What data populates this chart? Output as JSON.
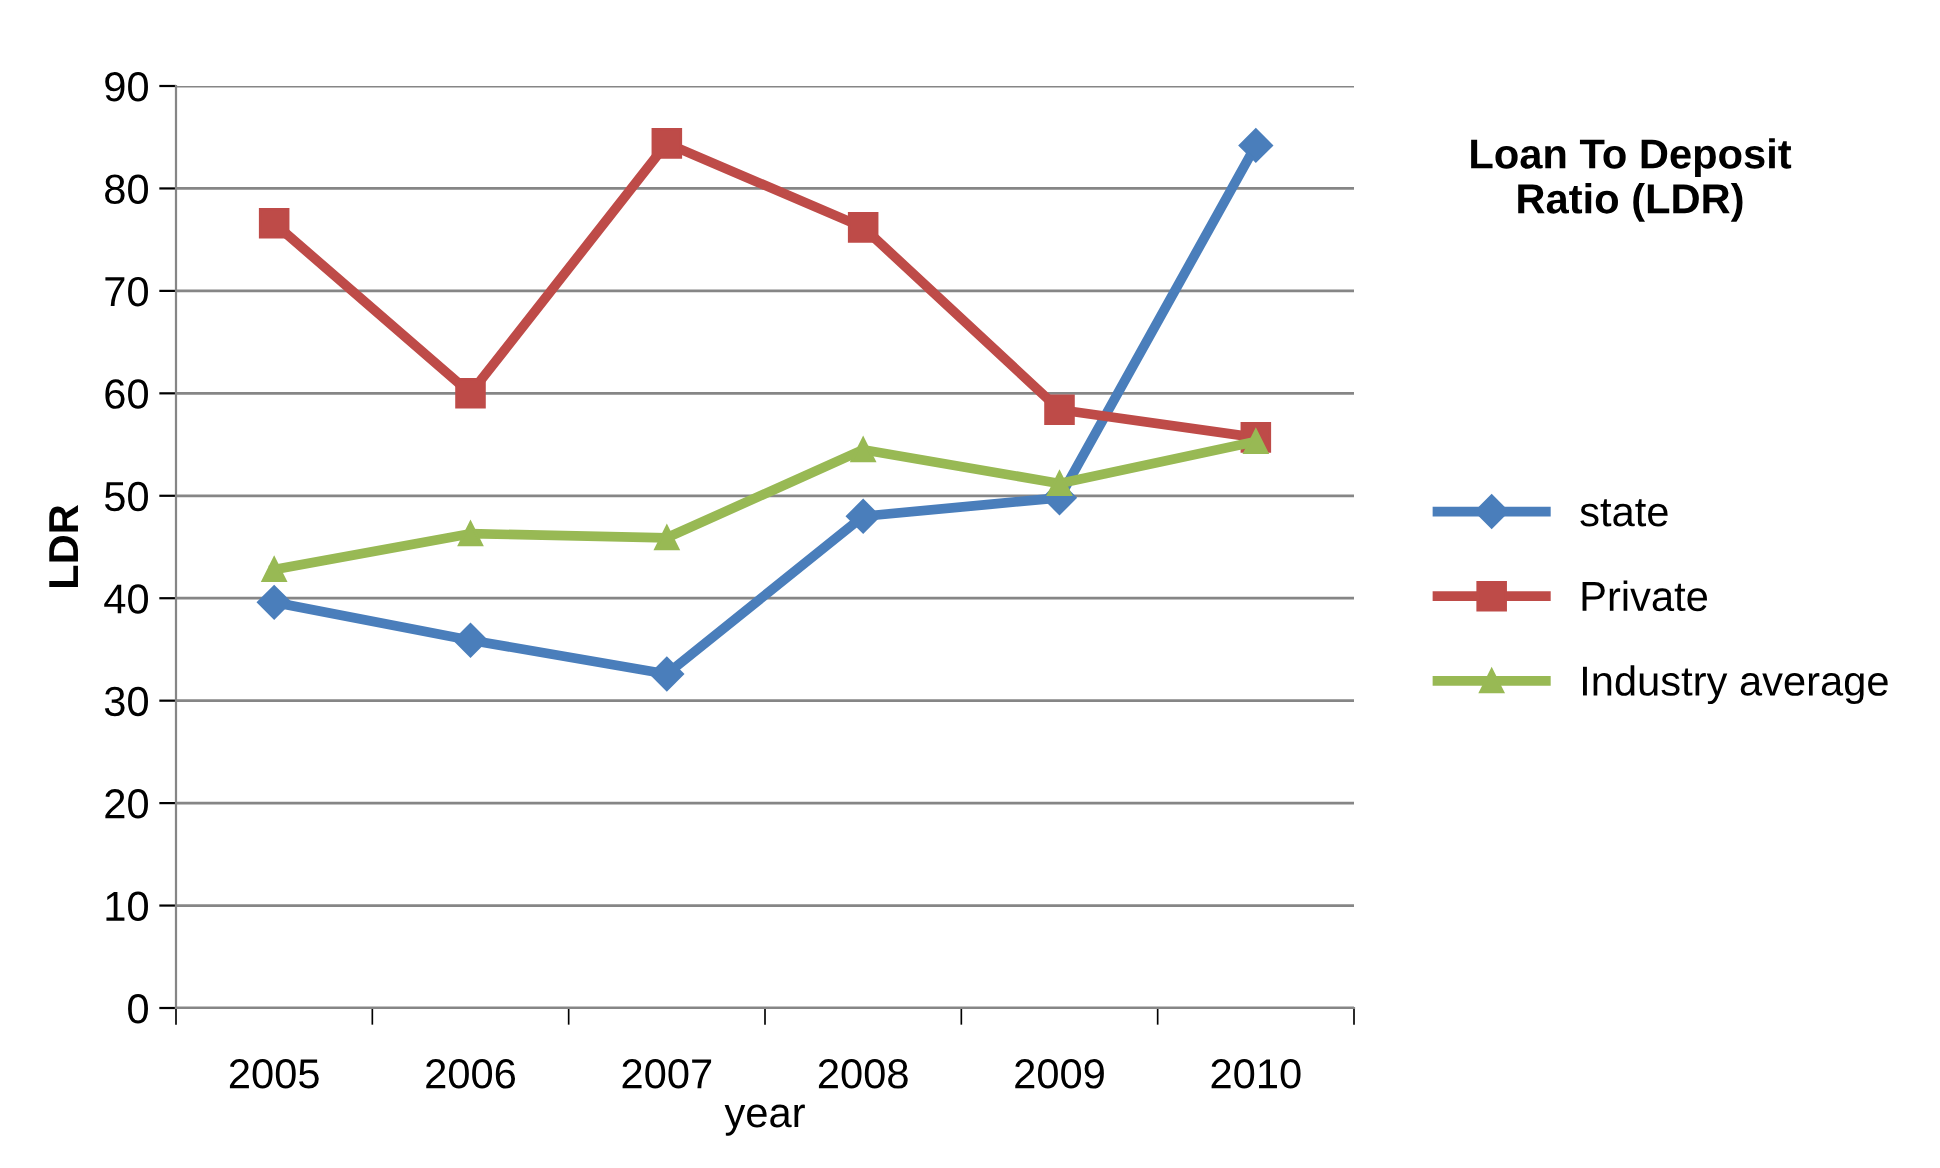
{
  "chart_data": {
    "type": "line",
    "title": "Loan To Deposit\nRatio (LDR)",
    "xlabel": "year",
    "ylabel": "LDR",
    "categories": [
      "2005",
      "2006",
      "2007",
      "2008",
      "2009",
      "2010"
    ],
    "series": [
      {
        "name": "state",
        "color": "#4a7ebb",
        "marker": "diamond",
        "values": [
          39.6,
          35.9,
          32.6,
          48.0,
          49.8,
          84.2
        ]
      },
      {
        "name": "Private",
        "color": "#be4b48",
        "marker": "square",
        "values": [
          76.6,
          60.0,
          84.4,
          76.2,
          58.4,
          55.7
        ]
      },
      {
        "name": "Industry average",
        "color": "#98b954",
        "marker": "triangle",
        "values": [
          42.8,
          46.3,
          45.9,
          54.5,
          51.2,
          55.3
        ]
      }
    ],
    "ylim": [
      0,
      90
    ],
    "yticks": [
      0,
      10,
      20,
      30,
      40,
      50,
      60,
      70,
      80,
      90
    ],
    "grid": "y",
    "legend": "right",
    "line_style": "solid"
  }
}
